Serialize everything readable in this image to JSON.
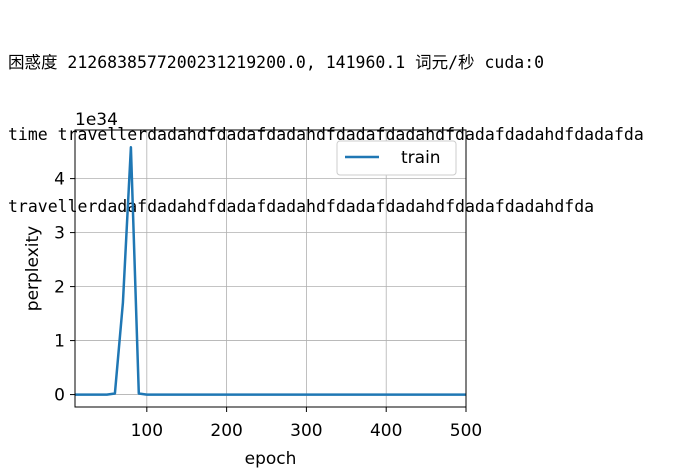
{
  "log": {
    "line1": "困惑度 2126838577200231219200.0, 141960.1 词元/秒 cuda:0",
    "line2": "time travellerdadahdfdadafdadahdfdadafdadahdfdadafdadahdfdadafda",
    "line3": "travellerdadafdadahdfdadafdadahdfdadafdadahdfdadafdadahdfda"
  },
  "chart_data": {
    "type": "line",
    "title": "",
    "xlabel": "epoch",
    "ylabel": "perplexity",
    "y_scale_label": "1e34",
    "xlim": [
      10,
      500
    ],
    "ylim": [
      -0.23,
      4.9
    ],
    "x_ticks": [
      100,
      200,
      300,
      400,
      500
    ],
    "y_ticks": [
      0,
      1,
      2,
      3,
      4
    ],
    "grid": true,
    "legend": "top-right",
    "series": [
      {
        "name": "train",
        "color": "#1f77b4",
        "x": [
          10,
          20,
          30,
          40,
          50,
          60,
          70,
          80,
          90,
          100,
          110,
          120,
          130,
          140,
          150,
          160,
          170,
          180,
          190,
          200,
          210,
          220,
          230,
          240,
          250,
          260,
          270,
          280,
          290,
          300,
          310,
          320,
          330,
          340,
          350,
          360,
          370,
          380,
          390,
          400,
          410,
          420,
          430,
          440,
          450,
          460,
          470,
          480,
          490,
          500
        ],
        "values": [
          0,
          0,
          0,
          0,
          0,
          0.02,
          1.7,
          4.58,
          0.02,
          0,
          0,
          0,
          0,
          0,
          0,
          0,
          0,
          0,
          0,
          0,
          0,
          0,
          0,
          0,
          0,
          0,
          0,
          0,
          0,
          0,
          0,
          0,
          0,
          0,
          0,
          0,
          0,
          0,
          0,
          0,
          0,
          0,
          0,
          0,
          0,
          0,
          0,
          0,
          0,
          0
        ]
      }
    ]
  }
}
